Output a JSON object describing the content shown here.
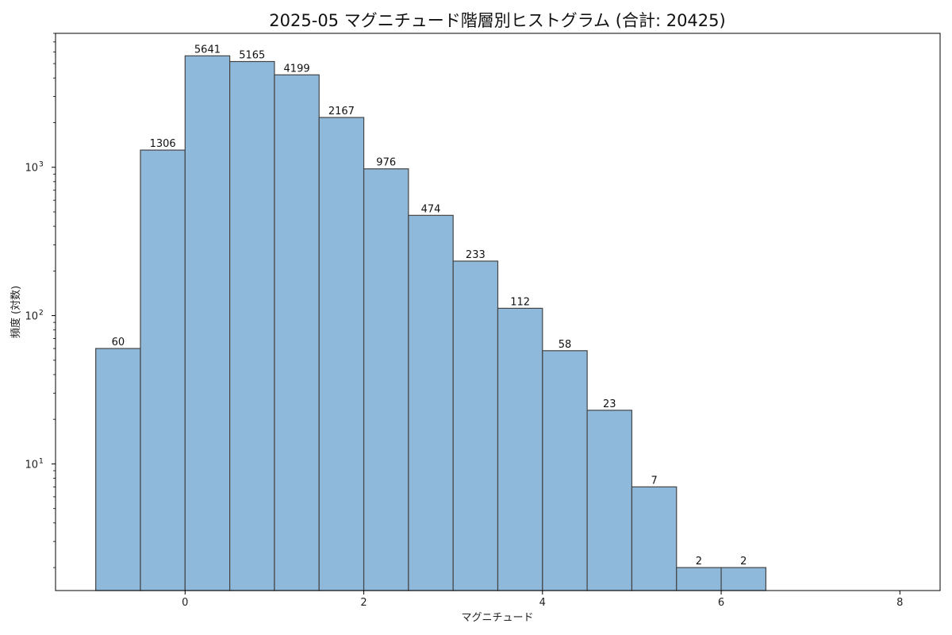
{
  "chart_data": {
    "type": "bar",
    "title": "2025-05 マグニチュード階層別ヒストグラム (合計: 20425)",
    "xlabel": "マグニチュード",
    "ylabel": "頻度 (対数)",
    "yscale": "log",
    "xlim": [
      -1.45,
      8.45
    ],
    "ylim": [
      1.4,
      8000
    ],
    "grid": false,
    "bin_width": 0.5,
    "bins": [
      {
        "x_start": -1.0,
        "x_end": -0.5,
        "value": 60
      },
      {
        "x_start": -0.5,
        "x_end": 0.0,
        "value": 1306
      },
      {
        "x_start": 0.0,
        "x_end": 0.5,
        "value": 5641
      },
      {
        "x_start": 0.5,
        "x_end": 1.0,
        "value": 5165
      },
      {
        "x_start": 1.0,
        "x_end": 1.5,
        "value": 4199
      },
      {
        "x_start": 1.5,
        "x_end": 2.0,
        "value": 2167
      },
      {
        "x_start": 2.0,
        "x_end": 2.5,
        "value": 976
      },
      {
        "x_start": 2.5,
        "x_end": 3.0,
        "value": 474
      },
      {
        "x_start": 3.0,
        "x_end": 3.5,
        "value": 233
      },
      {
        "x_start": 3.5,
        "x_end": 4.0,
        "value": 112
      },
      {
        "x_start": 4.0,
        "x_end": 4.5,
        "value": 58
      },
      {
        "x_start": 4.5,
        "x_end": 5.0,
        "value": 23
      },
      {
        "x_start": 5.0,
        "x_end": 5.5,
        "value": 7
      },
      {
        "x_start": 5.5,
        "x_end": 6.0,
        "value": 2
      },
      {
        "x_start": 6.0,
        "x_end": 6.5,
        "value": 2
      }
    ],
    "x_ticks": [
      0,
      2,
      4,
      6,
      8
    ],
    "x_tick_labels": [
      "0",
      "2",
      "4",
      "6",
      "8"
    ],
    "y_major_ticks": [
      10,
      100,
      1000
    ],
    "y_tick_base": "10",
    "y_tick_exponents": [
      "1",
      "2",
      "3"
    ],
    "colors": {
      "bar_fill": "#8fb9da",
      "bar_edge": "#444444"
    }
  }
}
